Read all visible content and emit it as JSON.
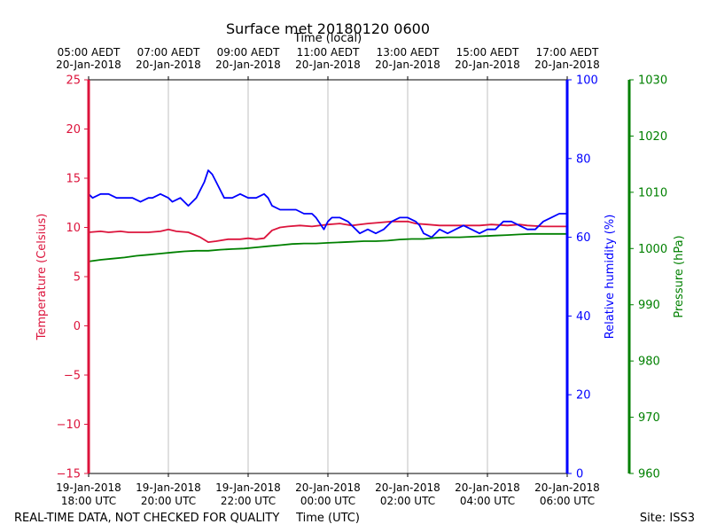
{
  "chart_data": {
    "type": "line",
    "title": "Surface met 20180120 0600",
    "top_axis_label": "Time (local)",
    "xlabel": "Time (UTC)",
    "footer_left": "REAL-TIME DATA, NOT CHECKED FOR QUALITY",
    "footer_right": "Site: ISS3",
    "x_range_hours": [
      0,
      12
    ],
    "grid": "vertical",
    "bottom_ticks": [
      {
        "h": 0,
        "line1": "19-Jan-2018",
        "line2": "18:00 UTC"
      },
      {
        "h": 2,
        "line1": "19-Jan-2018",
        "line2": "20:00 UTC"
      },
      {
        "h": 4,
        "line1": "19-Jan-2018",
        "line2": "22:00 UTC"
      },
      {
        "h": 6,
        "line1": "20-Jan-2018",
        "line2": "00:00 UTC"
      },
      {
        "h": 8,
        "line1": "20-Jan-2018",
        "line2": "02:00 UTC"
      },
      {
        "h": 10,
        "line1": "20-Jan-2018",
        "line2": "04:00 UTC"
      },
      {
        "h": 12,
        "line1": "20-Jan-2018",
        "line2": "06:00 UTC"
      }
    ],
    "top_ticks": [
      {
        "h": 0,
        "line1": "05:00 AEDT",
        "line2": "20-Jan-2018"
      },
      {
        "h": 2,
        "line1": "07:00 AEDT",
        "line2": "20-Jan-2018"
      },
      {
        "h": 4,
        "line1": "09:00 AEDT",
        "line2": "20-Jan-2018"
      },
      {
        "h": 6,
        "line1": "11:00 AEDT",
        "line2": "20-Jan-2018"
      },
      {
        "h": 8,
        "line1": "13:00 AEDT",
        "line2": "20-Jan-2018"
      },
      {
        "h": 10,
        "line1": "15:00 AEDT",
        "line2": "20-Jan-2018"
      },
      {
        "h": 12,
        "line1": "17:00 AEDT",
        "line2": "20-Jan-2018"
      }
    ],
    "axes": [
      {
        "id": "temp",
        "label": "Temperature (Celsius)",
        "color": "#dc143c",
        "range": [
          -15,
          25
        ],
        "ticks": [
          {
            "v": -15,
            "t": "−15"
          },
          {
            "v": -10,
            "t": "−10"
          },
          {
            "v": -5,
            "t": "−5"
          },
          {
            "v": 0,
            "t": "0"
          },
          {
            "v": 5,
            "t": "5"
          },
          {
            "v": 10,
            "t": "10"
          },
          {
            "v": 15,
            "t": "15"
          },
          {
            "v": 20,
            "t": "20"
          },
          {
            "v": 25,
            "t": "25"
          }
        ]
      },
      {
        "id": "rh",
        "label": "Relative humidity (%)",
        "color": "#0000ff",
        "range": [
          0,
          100
        ],
        "ticks": [
          {
            "v": 0,
            "t": "0"
          },
          {
            "v": 20,
            "t": "20"
          },
          {
            "v": 40,
            "t": "40"
          },
          {
            "v": 60,
            "t": "60"
          },
          {
            "v": 80,
            "t": "80"
          },
          {
            "v": 100,
            "t": "100"
          }
        ]
      },
      {
        "id": "press",
        "label": "Pressure (hPa)",
        "color": "#008000",
        "range": [
          960,
          1030
        ],
        "ticks": [
          {
            "v": 960,
            "t": "960"
          },
          {
            "v": 970,
            "t": "970"
          },
          {
            "v": 980,
            "t": "980"
          },
          {
            "v": 990,
            "t": "990"
          },
          {
            "v": 1000,
            "t": "1000"
          },
          {
            "v": 1010,
            "t": "1010"
          },
          {
            "v": 1020,
            "t": "1020"
          },
          {
            "v": 1030,
            "t": "1030"
          }
        ]
      }
    ],
    "series": [
      {
        "name": "Temperature",
        "axis": "temp",
        "color": "#dc143c",
        "points": [
          [
            0,
            9.5
          ],
          [
            0.3,
            9.6
          ],
          [
            0.5,
            9.5
          ],
          [
            0.8,
            9.6
          ],
          [
            1.0,
            9.5
          ],
          [
            1.2,
            9.5
          ],
          [
            1.5,
            9.5
          ],
          [
            1.8,
            9.6
          ],
          [
            2.0,
            9.8
          ],
          [
            2.2,
            9.6
          ],
          [
            2.5,
            9.5
          ],
          [
            2.8,
            9.0
          ],
          [
            3.0,
            8.5
          ],
          [
            3.2,
            8.6
          ],
          [
            3.5,
            8.8
          ],
          [
            3.8,
            8.8
          ],
          [
            4.0,
            8.9
          ],
          [
            4.2,
            8.8
          ],
          [
            4.4,
            8.9
          ],
          [
            4.6,
            9.7
          ],
          [
            4.8,
            10.0
          ],
          [
            5.0,
            10.1
          ],
          [
            5.3,
            10.2
          ],
          [
            5.6,
            10.1
          ],
          [
            6.0,
            10.3
          ],
          [
            6.3,
            10.4
          ],
          [
            6.6,
            10.2
          ],
          [
            7.0,
            10.4
          ],
          [
            7.3,
            10.5
          ],
          [
            7.6,
            10.6
          ],
          [
            8.0,
            10.6
          ],
          [
            8.2,
            10.4
          ],
          [
            8.5,
            10.3
          ],
          [
            8.8,
            10.2
          ],
          [
            9.0,
            10.2
          ],
          [
            9.4,
            10.2
          ],
          [
            9.8,
            10.2
          ],
          [
            10.1,
            10.3
          ],
          [
            10.5,
            10.2
          ],
          [
            10.8,
            10.3
          ],
          [
            11.0,
            10.2
          ],
          [
            11.4,
            10.1
          ],
          [
            11.7,
            10.1
          ],
          [
            12.0,
            10.1
          ]
        ]
      },
      {
        "name": "Relative humidity",
        "axis": "rh",
        "color": "#0000ff",
        "points": [
          [
            0,
            71
          ],
          [
            0.1,
            70
          ],
          [
            0.3,
            71
          ],
          [
            0.5,
            71
          ],
          [
            0.7,
            70
          ],
          [
            0.9,
            70
          ],
          [
            1.1,
            70
          ],
          [
            1.3,
            69
          ],
          [
            1.5,
            70
          ],
          [
            1.6,
            70
          ],
          [
            1.8,
            71
          ],
          [
            2.0,
            70
          ],
          [
            2.1,
            69
          ],
          [
            2.3,
            70
          ],
          [
            2.5,
            68
          ],
          [
            2.7,
            70
          ],
          [
            2.9,
            74
          ],
          [
            3.0,
            77
          ],
          [
            3.1,
            76
          ],
          [
            3.2,
            74
          ],
          [
            3.4,
            70
          ],
          [
            3.6,
            70
          ],
          [
            3.8,
            71
          ],
          [
            4.0,
            70
          ],
          [
            4.2,
            70
          ],
          [
            4.4,
            71
          ],
          [
            4.5,
            70
          ],
          [
            4.6,
            68
          ],
          [
            4.8,
            67
          ],
          [
            5.0,
            67
          ],
          [
            5.2,
            67
          ],
          [
            5.4,
            66
          ],
          [
            5.6,
            66
          ],
          [
            5.7,
            65
          ],
          [
            5.9,
            62
          ],
          [
            6.0,
            64
          ],
          [
            6.1,
            65
          ],
          [
            6.3,
            65
          ],
          [
            6.5,
            64
          ],
          [
            6.6,
            63
          ],
          [
            6.8,
            61
          ],
          [
            7.0,
            62
          ],
          [
            7.2,
            61
          ],
          [
            7.4,
            62
          ],
          [
            7.6,
            64
          ],
          [
            7.8,
            65
          ],
          [
            8.0,
            65
          ],
          [
            8.2,
            64
          ],
          [
            8.3,
            63
          ],
          [
            8.4,
            61
          ],
          [
            8.6,
            60
          ],
          [
            8.8,
            62
          ],
          [
            9.0,
            61
          ],
          [
            9.2,
            62
          ],
          [
            9.4,
            63
          ],
          [
            9.6,
            62
          ],
          [
            9.8,
            61
          ],
          [
            10.0,
            62
          ],
          [
            10.2,
            62
          ],
          [
            10.4,
            64
          ],
          [
            10.6,
            64
          ],
          [
            10.8,
            63
          ],
          [
            11.0,
            62
          ],
          [
            11.2,
            62
          ],
          [
            11.4,
            64
          ],
          [
            11.6,
            65
          ],
          [
            11.8,
            66
          ],
          [
            12.0,
            66
          ]
        ]
      },
      {
        "name": "Pressure",
        "axis": "press",
        "color": "#008000",
        "points": [
          [
            0,
            997.7
          ],
          [
            0.3,
            998.0
          ],
          [
            0.6,
            998.2
          ],
          [
            0.9,
            998.4
          ],
          [
            1.2,
            998.7
          ],
          [
            1.5,
            998.9
          ],
          [
            1.8,
            999.1
          ],
          [
            2.1,
            999.3
          ],
          [
            2.4,
            999.5
          ],
          [
            2.7,
            999.6
          ],
          [
            3.0,
            999.6
          ],
          [
            3.3,
            999.8
          ],
          [
            3.6,
            999.9
          ],
          [
            3.9,
            1000.0
          ],
          [
            4.2,
            1000.2
          ],
          [
            4.5,
            1000.4
          ],
          [
            4.8,
            1000.6
          ],
          [
            5.1,
            1000.8
          ],
          [
            5.4,
            1000.9
          ],
          [
            5.7,
            1000.9
          ],
          [
            6.0,
            1001.0
          ],
          [
            6.3,
            1001.1
          ],
          [
            6.6,
            1001.2
          ],
          [
            6.9,
            1001.3
          ],
          [
            7.2,
            1001.3
          ],
          [
            7.5,
            1001.4
          ],
          [
            7.8,
            1001.6
          ],
          [
            8.1,
            1001.7
          ],
          [
            8.4,
            1001.7
          ],
          [
            8.7,
            1001.9
          ],
          [
            9.0,
            1002.0
          ],
          [
            9.3,
            1002.0
          ],
          [
            9.6,
            1002.1
          ],
          [
            9.9,
            1002.2
          ],
          [
            10.2,
            1002.3
          ],
          [
            10.5,
            1002.4
          ],
          [
            10.8,
            1002.5
          ],
          [
            11.1,
            1002.6
          ],
          [
            11.4,
            1002.6
          ],
          [
            11.7,
            1002.6
          ],
          [
            12.0,
            1002.6
          ]
        ]
      }
    ]
  }
}
